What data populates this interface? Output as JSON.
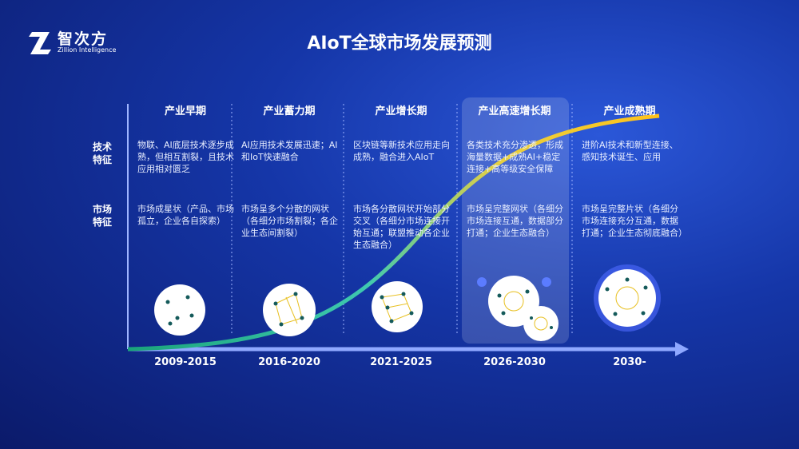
{
  "logo": {
    "name": "智次方",
    "subtitle": "Zillion Intelligence"
  },
  "title": "AIoT全球市场发展预测",
  "row_labels": [
    {
      "lines": [
        "技术",
        "特征"
      ]
    },
    {
      "lines": [
        "市场",
        "特征"
      ]
    }
  ],
  "stages": [
    {
      "name": "产业早期",
      "tech": "物联、AI底层技术逐步成熟，但相互割裂，且技术应用相对匮乏",
      "market": "市场成星状（产品、市场孤立，企业各自探索）",
      "years": "2009-2015"
    },
    {
      "name": "产业蓄力期",
      "tech": "AI应用技术发展迅速；AI和IoT快速融合",
      "market": "市场呈多个分散的网状（各细分市场割裂；各企业生态间割裂）",
      "years": "2016-2020"
    },
    {
      "name": "产业增长期",
      "tech": "区块链等新技术应用走向成熟，融合进入AIoT",
      "market": "市场各分散网状开始部分交叉（各细分市场连接开始互通；联盟推动各企业生态融合）",
      "years": "2021-2025"
    },
    {
      "name": "产业高速增长期",
      "tech": "各类技术充分渗透，形成海量数据+成熟AI+稳定连接+高等级安全保障",
      "market": "市场呈完整网状（各细分市场连接互通，数据部分打通；企业生态融合）",
      "years": "2026-2030"
    },
    {
      "name": "产业成熟期",
      "tech": "进阶AI技术和新型连接、感知技术诞生、应用",
      "market": "市场呈完整片状（各细分市场连接充分互通，数据打通；企业生态彻底融合）",
      "years": "2030-"
    }
  ]
}
